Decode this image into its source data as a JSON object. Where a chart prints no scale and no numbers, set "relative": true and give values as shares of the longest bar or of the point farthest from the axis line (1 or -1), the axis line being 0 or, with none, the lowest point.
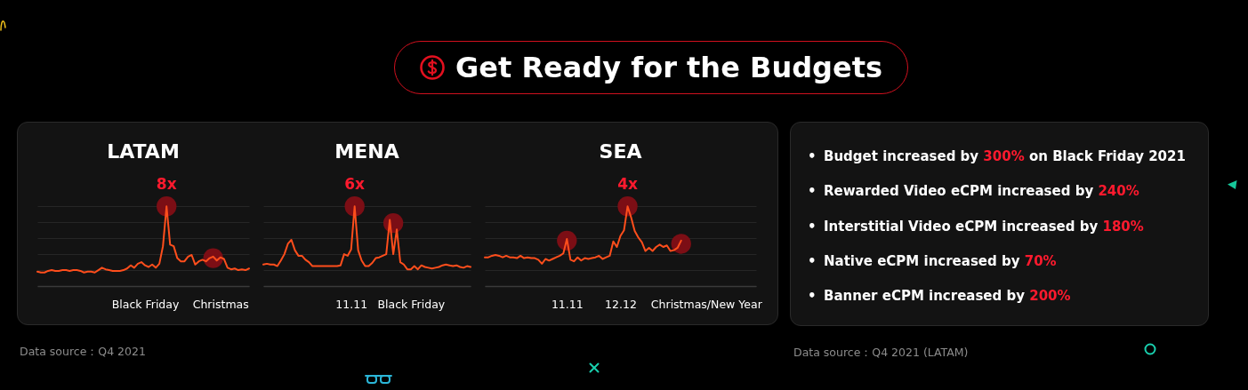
{
  "chart_data": [
    {
      "type": "other",
      "title": "Get Ready for the Budgets"
    },
    {
      "type": "line",
      "title": "LATAM",
      "relative": true,
      "grid": "y",
      "categories": [
        null,
        null,
        null,
        null,
        null,
        null,
        null,
        null,
        null,
        null,
        null,
        null,
        null,
        null,
        null,
        null,
        null,
        null,
        null,
        null,
        null,
        null,
        null,
        null,
        null,
        null,
        null,
        null,
        null,
        null,
        "Black Friday",
        null,
        null,
        null,
        null,
        null,
        null,
        null,
        null,
        null,
        null,
        null,
        null,
        null,
        null,
        null,
        null,
        null,
        null,
        null,
        null,
        "Christmas",
        null,
        null,
        null,
        null,
        null,
        null,
        null,
        null
      ],
      "series": [
        {
          "type": "scatter",
          "marker": "circle",
          "color": "#7c0e15",
          "values": [
            null,
            null,
            null,
            null,
            null,
            null,
            null,
            null,
            null,
            null,
            null,
            null,
            null,
            null,
            null,
            null,
            null,
            null,
            null,
            null,
            null,
            null,
            null,
            null,
            null,
            null,
            null,
            null,
            null,
            null,
            null,
            null,
            null,
            null,
            null,
            null,
            1.0,
            null,
            null,
            null,
            null,
            null,
            null,
            null,
            null,
            null,
            null,
            null,
            null,
            0.35,
            null,
            null,
            null,
            null,
            null,
            null,
            null,
            null,
            null,
            null
          ]
        },
        {
          "type": "line",
          "color": "#ff4e1c",
          "values": [
            0.18,
            0.17,
            0.17,
            0.19,
            0.2,
            0.19,
            0.19,
            0.2,
            0.2,
            0.19,
            0.2,
            0.2,
            0.19,
            0.17,
            0.18,
            0.18,
            0.17,
            0.2,
            0.23,
            0.21,
            0.2,
            0.19,
            0.19,
            0.19,
            0.2,
            0.22,
            0.26,
            0.23,
            0.28,
            0.3,
            0.26,
            0.24,
            0.27,
            0.23,
            0.28,
            0.5,
            1.0,
            0.52,
            0.5,
            0.35,
            0.31,
            0.31,
            0.37,
            0.39,
            0.27,
            0.31,
            0.33,
            0.31,
            0.35,
            0.37,
            0.32,
            0.36,
            0.34,
            0.23,
            0.21,
            0.22,
            0.2,
            0.21,
            0.2,
            0.22
          ]
        }
      ],
      "annotations": [
        {
          "text": "8x",
          "y": 1.0
        },
        "Data source：Q4 2021"
      ]
    },
    {
      "type": "line",
      "title": "MENA",
      "relative": true,
      "grid": "y",
      "categories": [
        null,
        null,
        null,
        null,
        null,
        null,
        null,
        null,
        null,
        null,
        null,
        null,
        null,
        null,
        null,
        null,
        null,
        null,
        null,
        null,
        null,
        null,
        null,
        null,
        null,
        "11.11",
        null,
        null,
        null,
        null,
        null,
        null,
        null,
        null,
        null,
        null,
        null,
        null,
        null,
        null,
        null,
        null,
        "Black Friday",
        null,
        null,
        null,
        null,
        null,
        null,
        null,
        null,
        null,
        null,
        null,
        null,
        null,
        null,
        null,
        null,
        null
      ],
      "series": [
        {
          "type": "scatter",
          "marker": "circle",
          "color": "#7c0e15",
          "values": [
            null,
            null,
            null,
            null,
            null,
            null,
            null,
            null,
            null,
            null,
            null,
            null,
            null,
            null,
            null,
            null,
            null,
            null,
            null,
            null,
            null,
            null,
            null,
            null,
            null,
            null,
            1.0,
            null,
            null,
            null,
            null,
            null,
            null,
            null,
            null,
            null,
            null,
            0.79,
            null,
            null,
            null,
            null,
            null,
            null,
            null,
            null,
            null,
            null,
            null,
            null,
            null,
            null,
            null,
            null,
            null,
            null,
            null,
            null,
            null,
            null
          ]
        },
        {
          "type": "line",
          "color": "#ff4e1c",
          "values": [
            0.27,
            0.28,
            0.27,
            0.27,
            0.25,
            0.32,
            0.4,
            0.53,
            0.58,
            0.45,
            0.38,
            0.38,
            0.33,
            0.3,
            0.25,
            0.25,
            0.25,
            0.25,
            0.25,
            0.25,
            0.25,
            0.25,
            0.26,
            0.4,
            0.38,
            0.46,
            1.0,
            0.45,
            0.32,
            0.25,
            0.25,
            0.29,
            0.35,
            0.36,
            0.38,
            0.4,
            0.83,
            0.4,
            0.71,
            0.3,
            0.27,
            0.21,
            0.21,
            0.25,
            0.21,
            0.26,
            0.24,
            0.23,
            0.22,
            0.23,
            0.24,
            0.26,
            0.27,
            0.26,
            0.25,
            0.26,
            0.24,
            0.23,
            0.25,
            0.24
          ]
        }
      ],
      "annotations": [
        {
          "text": "6x",
          "y": 1.0
        }
      ]
    },
    {
      "type": "line",
      "title": "SEA",
      "relative": true,
      "grid": "y",
      "categories": [
        null,
        null,
        null,
        null,
        null,
        null,
        null,
        null,
        null,
        null,
        null,
        null,
        null,
        null,
        null,
        null,
        null,
        null,
        null,
        null,
        null,
        null,
        null,
        "11.11",
        null,
        null,
        null,
        null,
        null,
        null,
        null,
        null,
        null,
        null,
        null,
        null,
        null,
        null,
        "12.12",
        null,
        null,
        null,
        null,
        null,
        null,
        null,
        null,
        null,
        null,
        null,
        null,
        null,
        null,
        null,
        null,
        null,
        null,
        null,
        null,
        null,
        null,
        null,
        "Christmas/New Year",
        null,
        null,
        null,
        null,
        null,
        null,
        null,
        null,
        null,
        null,
        null,
        null,
        null,
        null
      ],
      "series": [
        {
          "type": "scatter",
          "marker": "circle",
          "color": "#7c0e15",
          "values": [
            null,
            null,
            null,
            null,
            null,
            null,
            null,
            null,
            null,
            null,
            null,
            null,
            null,
            null,
            null,
            null,
            null,
            null,
            null,
            null,
            null,
            null,
            null,
            0.57,
            null,
            null,
            null,
            null,
            null,
            null,
            null,
            null,
            null,
            null,
            null,
            null,
            null,
            null,
            null,
            null,
            1.0,
            null,
            null,
            null,
            null,
            null,
            null,
            null,
            null,
            null,
            null,
            null,
            null,
            null,
            null,
            0.53,
            null,
            null,
            null,
            null,
            null,
            null,
            null,
            null,
            null,
            null,
            null,
            null,
            null,
            null,
            null,
            null,
            null,
            null,
            null,
            null,
            null
          ]
        },
        {
          "type": "line",
          "color": "#ff4e1c",
          "values": [
            0.36,
            0.36,
            0.38,
            0.39,
            0.38,
            0.36,
            0.38,
            0.36,
            0.36,
            0.35,
            0.38,
            0.35,
            0.36,
            0.35,
            0.35,
            0.33,
            0.28,
            0.34,
            0.32,
            0.34,
            0.36,
            0.38,
            0.41,
            0.59,
            0.33,
            0.31,
            0.36,
            0.32,
            0.35,
            0.34,
            0.35,
            0.36,
            0.38,
            0.34,
            0.36,
            0.38,
            0.56,
            0.49,
            0.63,
            0.7,
            1.0,
            0.86,
            0.69,
            0.61,
            0.55,
            0.44,
            0.48,
            0.44,
            0.49,
            0.52,
            0.49,
            0.51,
            0.44,
            0.45,
            0.48,
            0.57,
            null,
            null,
            null,
            null,
            null,
            null,
            null,
            null,
            null,
            null,
            null,
            null,
            null,
            null,
            null,
            null,
            null,
            null,
            null,
            null,
            null
          ]
        }
      ],
      "annotations": [
        {
          "text": "4x",
          "y": 1.0
        }
      ]
    },
    {
      "type": "other",
      "annotations": [
        "• Budget increased by 300% on Black Friday 2021",
        "• Rewarded Video eCPM increased by 240%",
        "• Interstitial Video eCPM increased by 180%",
        "• Native eCPM increased by 70%",
        "• Banner eCPM increased by 200%",
        "Data source：Q4 2021 (LATAM)"
      ]
    }
  ]
}
